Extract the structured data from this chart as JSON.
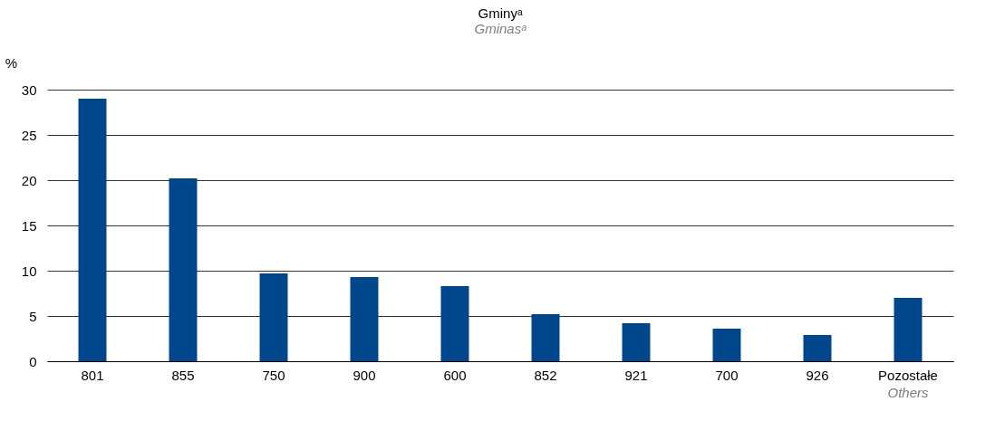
{
  "chart_data": {
    "type": "bar",
    "title": "Gminyᵃ",
    "subtitle": "Gminasᵃ",
    "ylabel": "%",
    "categories": [
      "801",
      "855",
      "750",
      "900",
      "600",
      "852",
      "921",
      "700",
      "926",
      "Pozostałe"
    ],
    "values": [
      29.0,
      20.2,
      9.7,
      9.3,
      8.3,
      5.2,
      4.2,
      3.6,
      2.9,
      7.0
    ],
    "color": "#00468b",
    "annotations": [
      "Others"
    ],
    "ylim": [
      0,
      30
    ],
    "yticks": [
      0,
      5,
      10,
      15,
      20,
      25,
      30
    ],
    "grid": "y"
  }
}
